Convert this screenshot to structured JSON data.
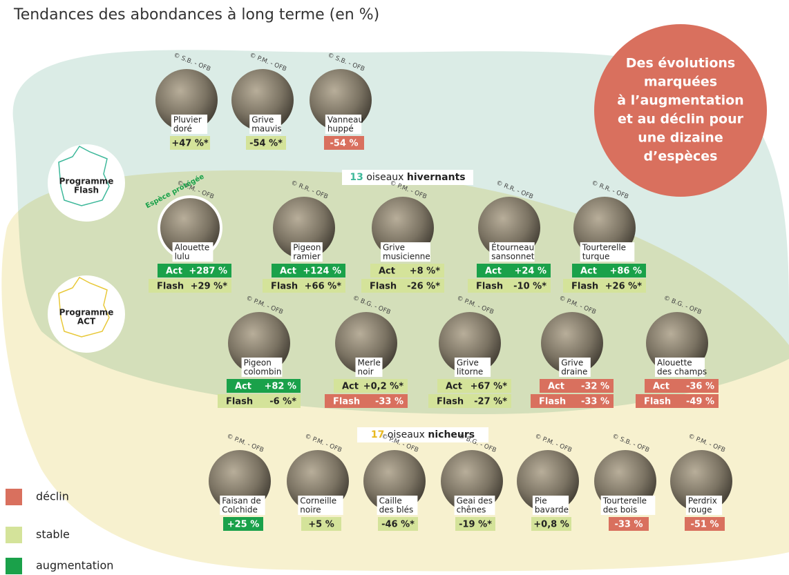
{
  "title": "Tendances des abondances à long terme (en %)",
  "callout": [
    "Des évolutions",
    "marquées",
    "à l’augmentation",
    "et au déclin pour",
    "une dizaine",
    "d’espèces"
  ],
  "programs": [
    [
      "Programme",
      "Flash"
    ],
    [
      "Programme",
      "ACT"
    ]
  ],
  "groups": [
    {
      "count": "13",
      "text": " oiseaux ",
      "bold": "hivernants"
    },
    {
      "count": "17",
      "text": " oiseaux ",
      "bold": "nicheurs"
    }
  ],
  "legend": [
    {
      "label": "déclin",
      "color": "#d9705e"
    },
    {
      "label": "stable",
      "color": "#d4e39a"
    },
    {
      "label": "augmentation",
      "color": "#1aa14a"
    }
  ],
  "protected": "Espèce protégée",
  "rows": [
    [
      {
        "name": [
          "Pluvier",
          "doré"
        ],
        "credit": "© S.B. - OFB",
        "trends": [
          {
            "value": "+47 %*",
            "trend": "stable"
          }
        ]
      },
      {
        "name": [
          "Grive",
          "mauvis"
        ],
        "credit": "© P.M. - OFB",
        "trends": [
          {
            "value": "-54 %*",
            "trend": "stable"
          }
        ]
      },
      {
        "name": [
          "Vanneau",
          "huppé"
        ],
        "credit": "© S.B. - OFB",
        "trends": [
          {
            "value": "-54 %",
            "trend": "déclin"
          }
        ]
      }
    ],
    [
      {
        "name": [
          "Alouette",
          "lulu"
        ],
        "credit": "© P.M. - OFB",
        "protected": true,
        "trends": [
          {
            "program": "Act",
            "value": "+287 %",
            "trend": "augmentation"
          },
          {
            "program": "Flash",
            "value": "+29 %*",
            "trend": "stable"
          }
        ]
      },
      {
        "name": [
          "Pigeon",
          "ramier"
        ],
        "credit": "© R.R. - OFB",
        "trends": [
          {
            "program": "Act",
            "value": "+124 %",
            "trend": "augmentation"
          },
          {
            "program": "Flash",
            "value": "+66 %*",
            "trend": "stable"
          }
        ]
      },
      {
        "name": [
          "Grive",
          "musicienne"
        ],
        "credit": "© P.M. - OFB",
        "trends": [
          {
            "program": "Act",
            "value": "+8 %*",
            "trend": "stable"
          },
          {
            "program": "Flash",
            "value": "-26 %*",
            "trend": "stable"
          }
        ]
      },
      {
        "name": [
          "Étourneau",
          "sansonnet"
        ],
        "credit": "© R.R. - OFB",
        "trends": [
          {
            "program": "Act",
            "value": "+24 %",
            "trend": "augmentation"
          },
          {
            "program": "Flash",
            "value": "-10 %*",
            "trend": "stable"
          }
        ]
      },
      {
        "name": [
          "Tourterelle",
          "turque"
        ],
        "credit": "© R.R. - OFB",
        "trends": [
          {
            "program": "Act",
            "value": "+86 %",
            "trend": "augmentation"
          },
          {
            "program": "Flash",
            "value": "+26 %*",
            "trend": "stable"
          }
        ]
      }
    ],
    [
      {
        "name": [
          "Pigeon",
          "colombin"
        ],
        "credit": "© P.M. - OFB",
        "trends": [
          {
            "program": "Act",
            "value": "+82 %",
            "trend": "augmentation"
          },
          {
            "program": "Flash",
            "value": "-6 %*",
            "trend": "stable"
          }
        ]
      },
      {
        "name": [
          "Merle",
          "noir"
        ],
        "credit": "© B.G. - OFB",
        "trends": [
          {
            "program": "Act",
            "value": "+0,2 %*",
            "trend": "stable"
          },
          {
            "program": "Flash",
            "value": "-33 %",
            "trend": "déclin"
          }
        ]
      },
      {
        "name": [
          "Grive",
          "litorne"
        ],
        "credit": "© P.M. - OFB",
        "trends": [
          {
            "program": "Act",
            "value": "+67 %*",
            "trend": "stable"
          },
          {
            "program": "Flash",
            "value": "-27 %*",
            "trend": "stable"
          }
        ]
      },
      {
        "name": [
          "Grive",
          "draine"
        ],
        "credit": "© P.M. - OFB",
        "trends": [
          {
            "program": "Act",
            "value": "-32 %",
            "trend": "déclin"
          },
          {
            "program": "Flash",
            "value": "-33 %",
            "trend": "déclin"
          }
        ]
      },
      {
        "name": [
          "Alouette",
          "des champs"
        ],
        "credit": "© B.G. - OFB",
        "trends": [
          {
            "program": "Act",
            "value": "-36 %",
            "trend": "déclin"
          },
          {
            "program": "Flash",
            "value": "-49 %",
            "trend": "déclin"
          }
        ]
      }
    ],
    [
      {
        "name": [
          "Faisan de",
          "Colchide"
        ],
        "credit": "© P.M. - OFB",
        "trends": [
          {
            "value": "+25 %",
            "trend": "augmentation"
          }
        ]
      },
      {
        "name": [
          "Corneille",
          "noire"
        ],
        "credit": "© P.M. - OFB",
        "trends": [
          {
            "value": "+5 %",
            "trend": "stable"
          }
        ]
      },
      {
        "name": [
          "Caille",
          "des blés"
        ],
        "credit": "© P.M. - OFB",
        "trends": [
          {
            "value": "-46 %*",
            "trend": "stable"
          }
        ]
      },
      {
        "name": [
          "Geai des",
          "chênes"
        ],
        "credit": "© B.G. - OFB",
        "trends": [
          {
            "value": "-19 %*",
            "trend": "stable"
          }
        ]
      },
      {
        "name": [
          "Pie",
          "bavarde"
        ],
        "credit": "© P.M. - OFB",
        "trends": [
          {
            "value": "+0,8 %",
            "trend": "stable"
          }
        ]
      },
      {
        "name": [
          "Tourterelle",
          "des bois"
        ],
        "credit": "© S.B. - OFB",
        "trends": [
          {
            "value": "-33 %",
            "trend": "déclin"
          }
        ]
      },
      {
        "name": [
          "Perdrix",
          "rouge"
        ],
        "credit": "© P.M. - OFB",
        "trends": [
          {
            "value": "-51 %",
            "trend": "déclin"
          }
        ]
      }
    ]
  ]
}
